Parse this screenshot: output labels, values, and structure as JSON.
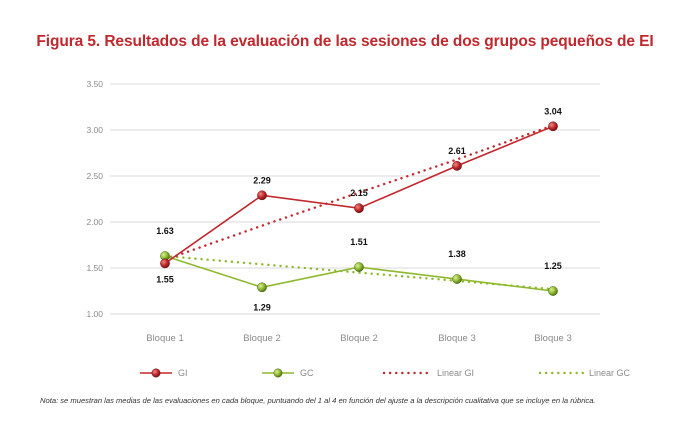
{
  "title": "Figura 5. Resultados de la evaluación de las sesiones de dos grupos pequeños de EI",
  "note": "Nota: se muestran las medias de las evaluaciones en cada bloque, puntuando del 1 al 4 en función del ajuste a la descripción cualitativa que se incluye en la rúbrica.",
  "colors": {
    "gi": "#c0282d",
    "gc": "#8db92e",
    "grid": "#d9d9d9",
    "title": "#c0282d"
  },
  "chart_data": {
    "type": "line",
    "title": "Figura 5. Resultados de la evaluación de las sesiones de dos grupos pequeños de EI",
    "xlabel": "",
    "ylabel": "",
    "categories": [
      "Bloque 1",
      "Bloque 2",
      "Bloque 2",
      "Bloque 3",
      "Bloque 3"
    ],
    "ylim": [
      1.0,
      3.5
    ],
    "yticks": [
      "1.00",
      "1.50",
      "2.00",
      "2.50",
      "3.00",
      "3.50"
    ],
    "grid": true,
    "legend_position": "bottom",
    "series": [
      {
        "name": "GI",
        "values": [
          1.55,
          2.29,
          2.15,
          2.61,
          3.04
        ],
        "labels": [
          "1.55",
          "2.29",
          "2.15",
          "2.61",
          "3.04"
        ],
        "color": "#c0282d",
        "style": "solid-markers"
      },
      {
        "name": "GC",
        "values": [
          1.63,
          1.29,
          1.51,
          1.38,
          1.25
        ],
        "labels": [
          "1.63",
          "1.29",
          "1.51",
          "1.38",
          "1.25"
        ],
        "color": "#8db92e",
        "style": "solid-markers"
      },
      {
        "name": "Linear GI",
        "values": [
          1.59,
          1.96,
          2.32,
          2.68,
          3.05
        ],
        "color": "#c0282d",
        "style": "dotted-trend"
      },
      {
        "name": "Linear GC",
        "values": [
          1.63,
          1.54,
          1.45,
          1.36,
          1.27
        ],
        "color": "#8db92e",
        "style": "dotted-trend"
      }
    ]
  }
}
